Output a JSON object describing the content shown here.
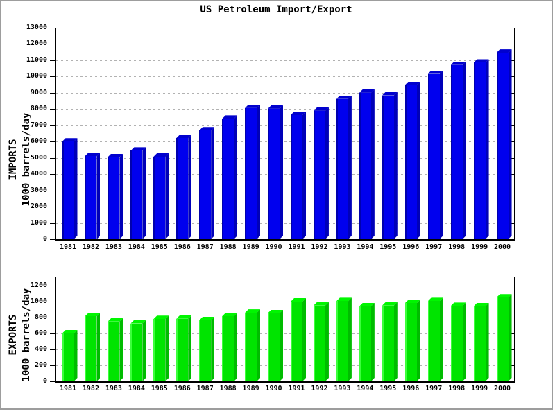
{
  "title": "US Petroleum Import/Export",
  "colors": {
    "background": "#FFFFFF",
    "grid": "#B2B2B2",
    "axis": "#000000",
    "text": "#000000",
    "frame": "#9D9D9D",
    "imports_bar": "#0000EE",
    "exports_bar": "#00E400"
  },
  "chart_data": [
    {
      "type": "bar",
      "id": "imports",
      "ylabel_lines": [
        "IMPORTS",
        "1000 barrels/day"
      ],
      "ylabel": "IMPORTS 1000 barrels/day",
      "xlabel": "",
      "categories": [
        "1981",
        "1982",
        "1983",
        "1984",
        "1985",
        "1986",
        "1987",
        "1988",
        "1989",
        "1990",
        "1991",
        "1992",
        "1993",
        "1994",
        "1995",
        "1996",
        "1997",
        "1998",
        "1999",
        "2000"
      ],
      "values": [
        6000,
        5110,
        5050,
        5440,
        5070,
        6220,
        6680,
        7400,
        8060,
        8020,
        7630,
        7890,
        8620,
        9000,
        8840,
        9480,
        10160,
        10710,
        10850,
        11460
      ],
      "ylim": [
        0,
        13000
      ],
      "ytick_step": 1000,
      "ytick_labels": [
        "0",
        "1000",
        "2000",
        "3000",
        "4000",
        "5000",
        "6000",
        "7000",
        "8000",
        "9000",
        "10000",
        "11000",
        "12000",
        "13000"
      ],
      "grid": "dashed horizontal",
      "legend": "none",
      "bar_style": "3d",
      "bar_color": "#0000EE",
      "bar_color_top": "#0000CE",
      "bar_color_side": "#0000B8",
      "bar_color_edge": "#0000AE"
    },
    {
      "type": "bar",
      "id": "exports",
      "ylabel_lines": [
        "EXPORTS",
        "1000 barrels/day"
      ],
      "ylabel": "EXPORTS 1000 barrels/day",
      "xlabel": "",
      "categories": [
        "1981",
        "1982",
        "1983",
        "1984",
        "1985",
        "1986",
        "1987",
        "1988",
        "1989",
        "1990",
        "1991",
        "1992",
        "1993",
        "1994",
        "1995",
        "1996",
        "1997",
        "1998",
        "1999",
        "2000"
      ],
      "values": [
        600,
        815,
        750,
        725,
        780,
        785,
        765,
        815,
        860,
        855,
        1000,
        950,
        1005,
        940,
        950,
        980,
        1005,
        945,
        940,
        1050
      ],
      "ylim": [
        0,
        1200
      ],
      "ytick_step": 200,
      "ytick_labels": [
        "0",
        "200",
        "400",
        "600",
        "800",
        "1000",
        "1200"
      ],
      "grid": "dashed horizontal",
      "legend": "none",
      "bar_style": "3d",
      "bar_color": "#00E400",
      "bar_color_top": "#00F600",
      "bar_color_side": "#00BC00",
      "bar_color_edge": "#3CFF3C"
    }
  ]
}
